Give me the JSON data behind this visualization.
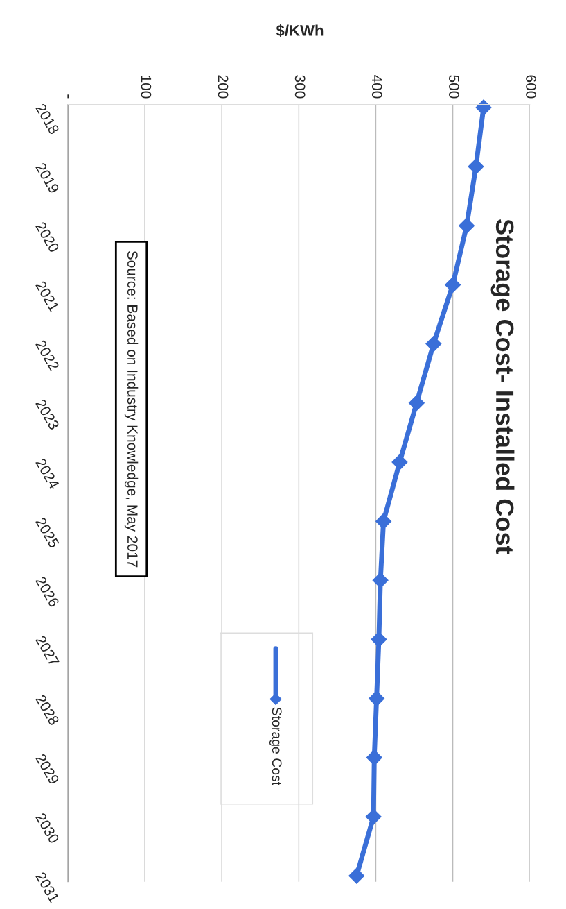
{
  "chart_data": {
    "type": "line",
    "title": "Storage Cost- Installed Cost",
    "ylabel": "$/KWh",
    "categories": [
      "2018",
      "2019",
      "2020",
      "2021",
      "2022",
      "2023",
      "2024",
      "2025",
      "2026",
      "2027",
      "2028",
      "2029",
      "2030",
      "2031"
    ],
    "series": [
      {
        "name": "Storage Cost",
        "color": "#3a6fd8",
        "values": [
          540,
          530,
          518,
          500,
          475,
          453,
          431,
          410,
          406,
          404,
          401,
          398,
          397,
          375
        ]
      }
    ],
    "orientation": "horizontal",
    "xlim": [
      0,
      600
    ],
    "xticks": [
      {
        "value": 0,
        "label": "-"
      },
      100,
      200,
      300,
      400,
      500,
      600
    ],
    "grid": "x",
    "marker": "diamond",
    "line_style": "solid",
    "legend": "bottom",
    "annotations": [
      "Source: Based on Industry Knowledge, May 2017"
    ]
  }
}
